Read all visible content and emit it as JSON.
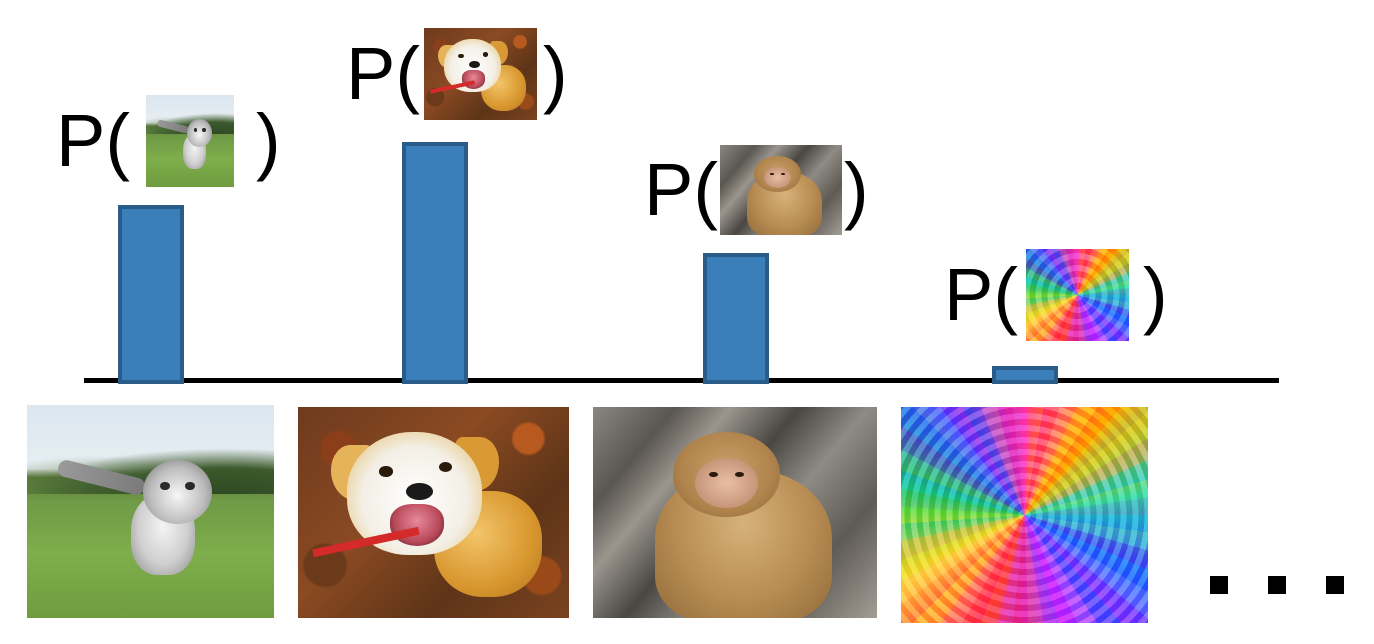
{
  "labels": {
    "prob_open": "P(",
    "prob_close": ")"
  },
  "items": [
    {
      "name": "kitten",
      "image": "kitten-photo"
    },
    {
      "name": "dog",
      "image": "dog-photo"
    },
    {
      "name": "monkey",
      "image": "monkey-photo"
    },
    {
      "name": "noise",
      "image": "noise-pattern"
    }
  ],
  "chart_data": {
    "type": "bar",
    "categories": [
      "kitten",
      "dog",
      "monkey",
      "noise"
    ],
    "values": [
      0.74,
      1.0,
      0.54,
      0.07
    ]
  },
  "colors": {
    "bar_fill": "#3a7fba",
    "bar_border": "#2a5c8a",
    "axis": "#000000"
  },
  "ellipsis": "..."
}
